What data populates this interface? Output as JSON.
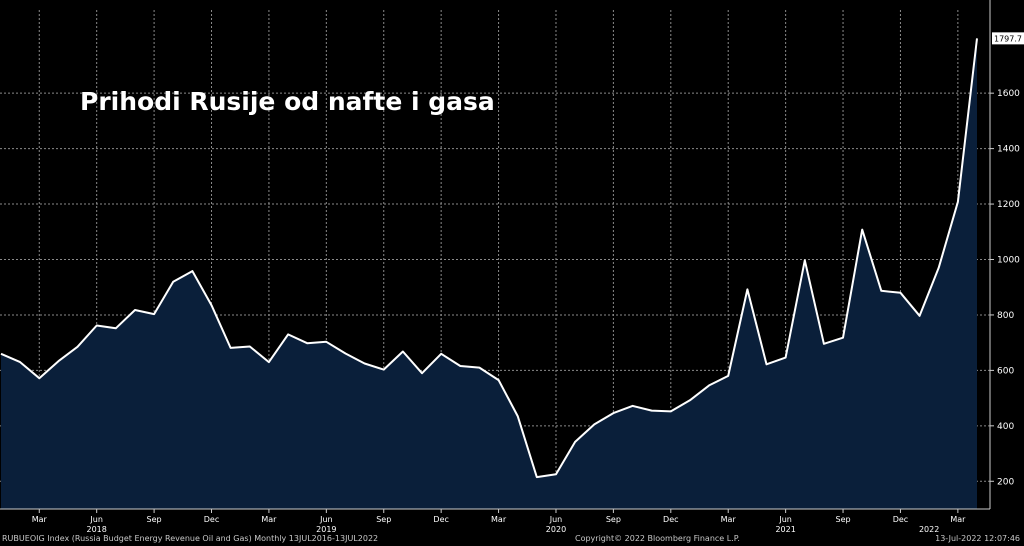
{
  "chart_data": {
    "type": "area",
    "title": "Prihodi Rusije od nafte i gasa",
    "ylim": [
      100,
      1900
    ],
    "yticks": [
      200,
      400,
      600,
      800,
      1000,
      1200,
      1400,
      1600
    ],
    "grid": true,
    "last_value_label": "1797.7",
    "month_ticks": [
      "Mar",
      "Jun",
      "Sep",
      "Dec",
      "Mar",
      "Jun",
      "Sep",
      "Dec",
      "Mar",
      "Jun",
      "Sep",
      "Dec",
      "Mar",
      "Jun",
      "Sep",
      "Dec",
      "Mar"
    ],
    "year_labels": [
      "2018",
      "2019",
      "2020",
      "2021",
      "2022"
    ],
    "series": [
      {
        "values": [
          660,
          630,
          572,
          633,
          685,
          762,
          752,
          818,
          803,
          920,
          958,
          835,
          681,
          686,
          630,
          730,
          698,
          703,
          661,
          625,
          603,
          668,
          590,
          660,
          616,
          610,
          565,
          435,
          215,
          225,
          342,
          405,
          446,
          472,
          455,
          452,
          492,
          546,
          580,
          892,
          622,
          646,
          997,
          696,
          718,
          1108,
          887,
          880,
          797,
          970,
          1208,
          1797.7
        ]
      }
    ]
  },
  "footer": {
    "left": "RUBUEOIG Index (Russia Budget Energy Revenue Oil and Gas)  Monthly 13JUL2016-13JUL2022",
    "middle": "Copyright© 2022 Bloomberg Finance L.P.",
    "right": "13-Jul-2022 12:07:46"
  },
  "colors": {
    "background": "#000000",
    "fill": "#0a1f3a",
    "line": "#ffffff",
    "grid": "#8a8a8a",
    "text": "#ffffff"
  }
}
